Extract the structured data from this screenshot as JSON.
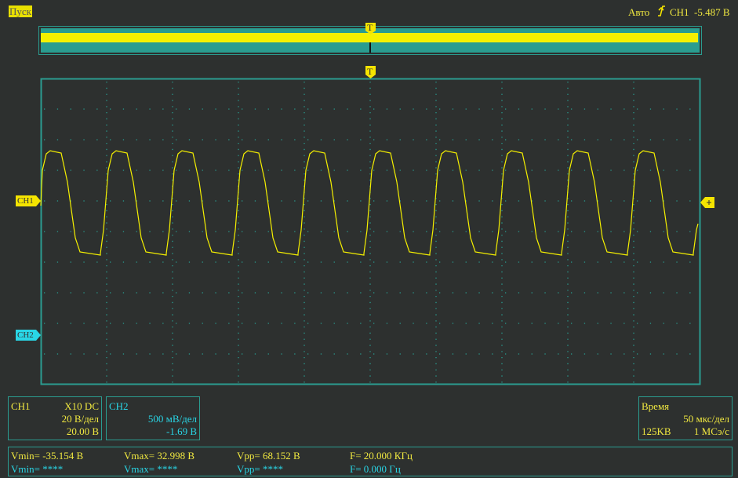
{
  "status_bar": {
    "run_state": "Пуск",
    "trigger_mode": "Авто",
    "trigger_source": "CH1",
    "trigger_level": "-5.487 В"
  },
  "memory_bar": {
    "trigger_marker": "T"
  },
  "screen": {
    "trigger_marker": "T",
    "ch1_marker": "CH1",
    "ch2_marker": "CH2"
  },
  "ch1_panel": {
    "title": "CH1",
    "probe": "X10  DC",
    "scale": "20 В/дел",
    "offset": "20.00 В"
  },
  "ch2_panel": {
    "title": "CH2",
    "scale": "500 мВ/дел",
    "offset": "-1.69 В"
  },
  "time_panel": {
    "title": "Время",
    "scale": "50 мкс/дел",
    "memory": "125KB",
    "sample_rate": "1 МСэ/с"
  },
  "measurements": {
    "ch1": [
      "Vmin= -35.154 В",
      "Vmax= 32.998 В",
      "Vpp= 68.152 В",
      "F= 20.000 КГц"
    ],
    "ch2": [
      "Vmin= ****",
      "Vmax= ****",
      "Vpp= ****",
      "F= 0.000 Гц"
    ]
  }
}
